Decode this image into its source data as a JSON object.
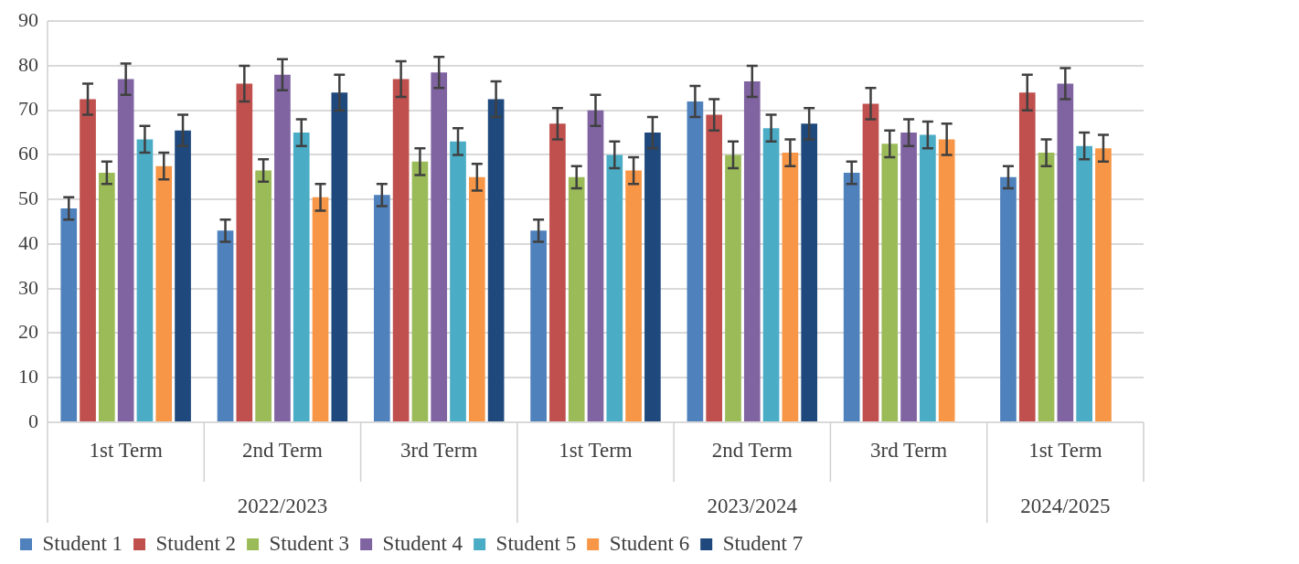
{
  "chart_data": {
    "type": "bar",
    "categories": [
      "1st Term",
      "2nd Term",
      "3rd Term",
      "1st Term",
      "2nd Term",
      "3rd Term",
      "1st Term"
    ],
    "series": [
      {
        "name": "Student 1",
        "color": "#4f81bd",
        "values": [
          48,
          43,
          51,
          43,
          72,
          56,
          55
        ],
        "errors": [
          2.5,
          2.5,
          2.5,
          2.5,
          3.5,
          2.5,
          2.5
        ]
      },
      {
        "name": "Student 2",
        "color": "#c0504d",
        "values": [
          72.5,
          76,
          77,
          67,
          69,
          71.5,
          74
        ],
        "errors": [
          3.5,
          4,
          4,
          3.5,
          3.5,
          3.5,
          4
        ]
      },
      {
        "name": "Student 3",
        "color": "#9bbb59",
        "values": [
          56,
          56.5,
          58.5,
          55,
          60,
          62.5,
          60.5
        ],
        "errors": [
          2.5,
          2.5,
          3,
          2.5,
          3,
          3,
          3
        ]
      },
      {
        "name": "Student 4",
        "color": "#8064a2",
        "values": [
          77,
          78,
          78.5,
          70,
          76.5,
          65,
          76
        ],
        "errors": [
          3.5,
          3.5,
          3.5,
          3.5,
          3.5,
          3,
          3.5
        ]
      },
      {
        "name": "Student 5",
        "color": "#4bacc6",
        "values": [
          63.5,
          65,
          63,
          60,
          66,
          64.5,
          62
        ],
        "errors": [
          3,
          3,
          3,
          3,
          3,
          3,
          3
        ]
      },
      {
        "name": "Student 6",
        "color": "#f79646",
        "values": [
          57.5,
          50.5,
          55,
          56.5,
          60.5,
          63.5,
          61.5
        ],
        "errors": [
          3,
          3,
          3,
          3,
          3,
          3.5,
          3
        ]
      },
      {
        "name": "Student 7",
        "color": "#1f497d",
        "values": [
          65.5,
          74,
          72.5,
          65,
          67,
          null,
          null
        ],
        "errors": [
          3.5,
          4,
          4,
          3.5,
          3.5,
          null,
          null
        ]
      }
    ],
    "annotations": [
      "2022/2023",
      "2023/2024",
      "2024/2025"
    ],
    "ylim": [
      0,
      90
    ],
    "yticks": [
      0,
      10,
      20,
      30,
      40,
      50,
      60,
      70,
      80,
      90
    ],
    "grid": "y",
    "legend": "bottom"
  }
}
